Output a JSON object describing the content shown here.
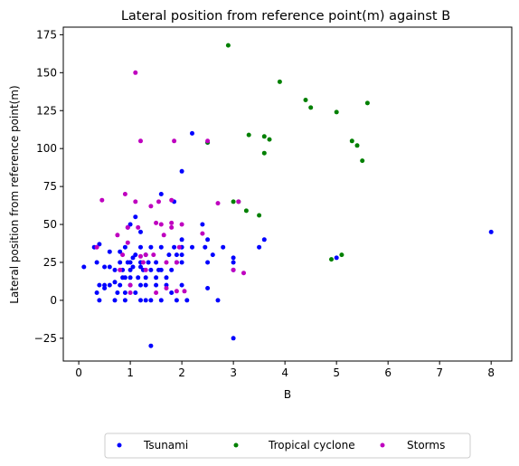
{
  "chart_data": {
    "type": "scatter",
    "title": "Lateral position from reference point(m) against B",
    "xlabel": "B",
    "ylabel": "Lateral position from reference point(m)",
    "xlim": [
      -0.3,
      8.4
    ],
    "ylim": [
      -40,
      180
    ],
    "xticks": [
      0,
      1,
      2,
      3,
      4,
      5,
      6,
      7,
      8
    ],
    "yticks": [
      -25,
      0,
      25,
      50,
      75,
      100,
      125,
      150,
      175
    ],
    "grid": false,
    "legend": {
      "placement": "bottom-center",
      "columns": 3
    },
    "series": [
      {
        "name": "Tsunami",
        "color": "#0000ff",
        "points": [
          [
            0.1,
            22
          ],
          [
            0.3,
            35
          ],
          [
            0.35,
            5
          ],
          [
            0.35,
            25
          ],
          [
            0.4,
            37
          ],
          [
            0.4,
            10
          ],
          [
            0.4,
            0
          ],
          [
            0.5,
            10
          ],
          [
            0.5,
            22
          ],
          [
            0.5,
            8
          ],
          [
            0.6,
            22
          ],
          [
            0.6,
            10
          ],
          [
            0.6,
            32
          ],
          [
            0.7,
            0
          ],
          [
            0.7,
            20
          ],
          [
            0.7,
            12
          ],
          [
            0.75,
            5
          ],
          [
            0.8,
            10
          ],
          [
            0.8,
            25
          ],
          [
            0.8,
            32
          ],
          [
            0.85,
            15
          ],
          [
            0.85,
            20
          ],
          [
            0.9,
            15
          ],
          [
            0.9,
            35
          ],
          [
            0.9,
            0
          ],
          [
            0.9,
            5
          ],
          [
            0.95,
            25
          ],
          [
            0.95,
            48
          ],
          [
            1.0,
            10
          ],
          [
            1.0,
            15
          ],
          [
            1.0,
            20
          ],
          [
            1.0,
            25
          ],
          [
            1.0,
            50
          ],
          [
            1.05,
            28
          ],
          [
            1.05,
            22
          ],
          [
            1.1,
            5
          ],
          [
            1.1,
            30
          ],
          [
            1.1,
            55
          ],
          [
            1.15,
            15
          ],
          [
            1.2,
            0
          ],
          [
            1.2,
            10
          ],
          [
            1.2,
            22
          ],
          [
            1.2,
            25
          ],
          [
            1.2,
            35
          ],
          [
            1.2,
            45
          ],
          [
            1.25,
            20
          ],
          [
            1.3,
            0
          ],
          [
            1.3,
            10
          ],
          [
            1.3,
            15
          ],
          [
            1.3,
            30
          ],
          [
            1.35,
            25
          ],
          [
            1.4,
            0
          ],
          [
            1.4,
            -30
          ],
          [
            1.4,
            35
          ],
          [
            1.4,
            20
          ],
          [
            1.5,
            15
          ],
          [
            1.5,
            25
          ],
          [
            1.5,
            10
          ],
          [
            1.55,
            20
          ],
          [
            1.6,
            0
          ],
          [
            1.6,
            20
          ],
          [
            1.6,
            35
          ],
          [
            1.6,
            70
          ],
          [
            1.7,
            10
          ],
          [
            1.7,
            15
          ],
          [
            1.75,
            30
          ],
          [
            1.8,
            20
          ],
          [
            1.8,
            5
          ],
          [
            1.85,
            35
          ],
          [
            1.85,
            65
          ],
          [
            1.9,
            0
          ],
          [
            1.9,
            25
          ],
          [
            1.9,
            30
          ],
          [
            2.0,
            10
          ],
          [
            2.0,
            25
          ],
          [
            2.0,
            30
          ],
          [
            2.0,
            35
          ],
          [
            2.0,
            40
          ],
          [
            2.0,
            85
          ],
          [
            2.1,
            0
          ],
          [
            2.2,
            35
          ],
          [
            2.2,
            110
          ],
          [
            2.4,
            50
          ],
          [
            2.45,
            35
          ],
          [
            2.5,
            25
          ],
          [
            2.5,
            40
          ],
          [
            2.5,
            8
          ],
          [
            2.5,
            104
          ],
          [
            2.6,
            30
          ],
          [
            2.7,
            0
          ],
          [
            2.8,
            35
          ],
          [
            3.0,
            20
          ],
          [
            3.0,
            28
          ],
          [
            3.0,
            25
          ],
          [
            3.0,
            -25
          ],
          [
            3.5,
            35
          ],
          [
            3.6,
            40
          ],
          [
            5.0,
            28
          ],
          [
            8.0,
            45
          ]
        ]
      },
      {
        "name": "Tropical cyclone",
        "color": "#008000",
        "points": [
          [
            2.5,
            104
          ],
          [
            2.9,
            168
          ],
          [
            3.0,
            65
          ],
          [
            3.1,
            65
          ],
          [
            3.25,
            59
          ],
          [
            3.3,
            109
          ],
          [
            3.5,
            56
          ],
          [
            3.6,
            97
          ],
          [
            3.6,
            108
          ],
          [
            3.7,
            106
          ],
          [
            3.9,
            144
          ],
          [
            4.4,
            132
          ],
          [
            4.5,
            127
          ],
          [
            4.9,
            27
          ],
          [
            5.0,
            124
          ],
          [
            5.1,
            30
          ],
          [
            5.3,
            105
          ],
          [
            5.4,
            102
          ],
          [
            5.5,
            92
          ],
          [
            5.6,
            130
          ]
        ]
      },
      {
        "name": "Storms",
        "color": "#bf00bf",
        "points": [
          [
            0.35,
            35
          ],
          [
            0.45,
            66
          ],
          [
            0.75,
            43
          ],
          [
            0.8,
            20
          ],
          [
            0.85,
            30
          ],
          [
            0.9,
            70
          ],
          [
            0.95,
            48
          ],
          [
            0.95,
            38
          ],
          [
            1.0,
            10
          ],
          [
            1.0,
            5
          ],
          [
            1.1,
            65
          ],
          [
            1.1,
            150
          ],
          [
            1.15,
            48
          ],
          [
            1.2,
            105
          ],
          [
            1.2,
            29
          ],
          [
            1.25,
            25
          ],
          [
            1.3,
            20
          ],
          [
            1.3,
            30
          ],
          [
            1.4,
            62
          ],
          [
            1.45,
            30
          ],
          [
            1.5,
            51
          ],
          [
            1.5,
            5
          ],
          [
            1.55,
            65
          ],
          [
            1.6,
            50
          ],
          [
            1.65,
            43
          ],
          [
            1.7,
            25
          ],
          [
            1.7,
            8
          ],
          [
            1.8,
            66
          ],
          [
            1.8,
            51
          ],
          [
            1.8,
            48
          ],
          [
            1.85,
            105
          ],
          [
            1.9,
            25
          ],
          [
            1.9,
            6
          ],
          [
            1.95,
            35
          ],
          [
            2.0,
            50
          ],
          [
            2.05,
            6
          ],
          [
            2.4,
            44
          ],
          [
            2.5,
            105
          ],
          [
            2.7,
            64
          ],
          [
            3.0,
            20
          ],
          [
            3.1,
            65
          ],
          [
            3.2,
            18
          ]
        ]
      }
    ]
  }
}
